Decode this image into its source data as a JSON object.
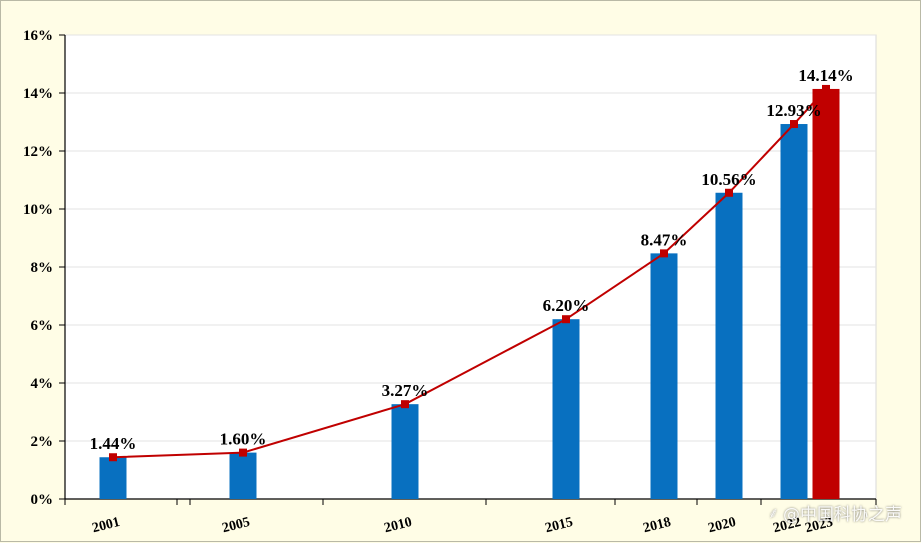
{
  "chart_data": {
    "type": "bar",
    "title": "",
    "xlabel": "",
    "ylabel": "",
    "categories": [
      "2001",
      "2005",
      "2010",
      "2015",
      "2018",
      "2020",
      "2022",
      "2023"
    ],
    "values": [
      1.44,
      1.6,
      3.27,
      6.2,
      8.47,
      10.56,
      12.93,
      14.14
    ],
    "value_labels": [
      "1.44%",
      "1.60%",
      "3.27%",
      "6.20%",
      "8.47%",
      "10.56%",
      "12.93%",
      "14.14%"
    ],
    "overlay": "line with square markers through bar tops",
    "ylim": [
      0,
      16
    ],
    "yticks": [
      0,
      2,
      4,
      6,
      8,
      10,
      12,
      14,
      16
    ],
    "ytick_labels": [
      "0%",
      "2%",
      "4%",
      "6%",
      "8%",
      "10%",
      "12%",
      "14%",
      "16%"
    ],
    "grid": true,
    "legend": "none",
    "colors": {
      "bar": "#0870c0",
      "bar_highlight": "#c00000",
      "line": "#c00000",
      "marker": "#c00000",
      "background": "#fffde6",
      "plot_background": "#ffffff"
    }
  },
  "watermark": {
    "icon": "watermark-logo-icon",
    "text": "@中国科协之声"
  }
}
